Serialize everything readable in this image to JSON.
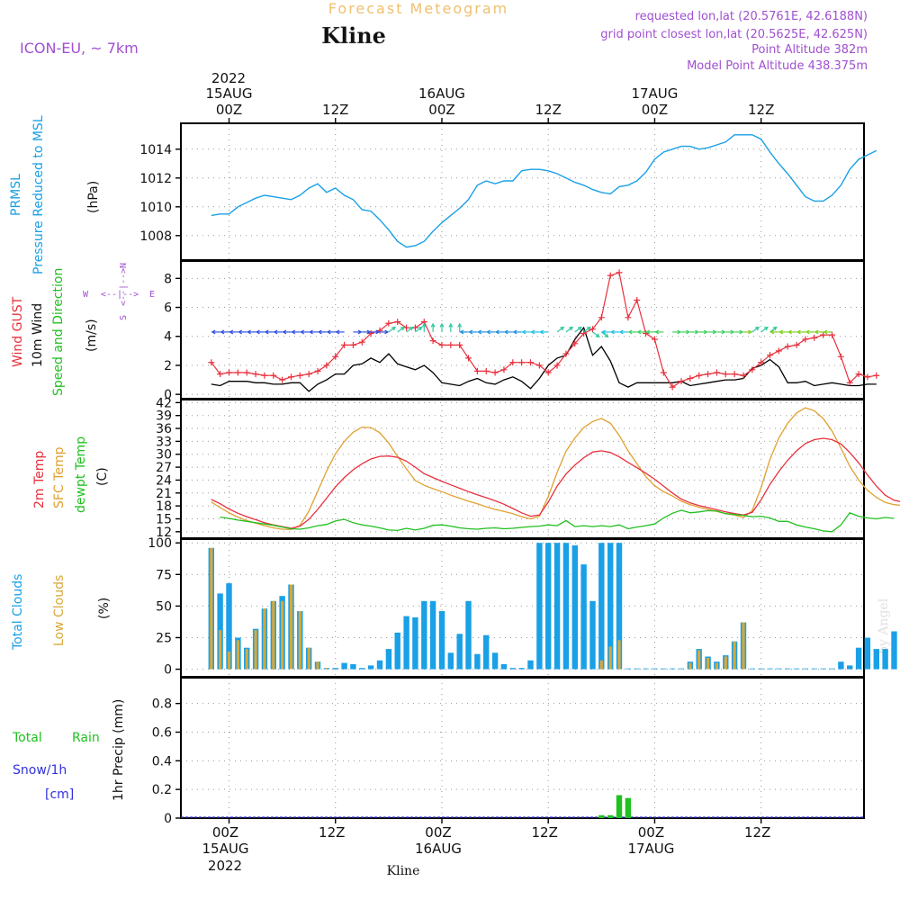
{
  "header": {
    "title": "Forecast Meteogram",
    "station": "Kline",
    "model": "ICON-EU, ~ 7km",
    "requested": "requested lon,lat (20.5761E, 42.6188N)",
    "gridpoint": "grid point closest lon,lat (20.5625E, 42.625N)",
    "point_alt": "Point Altitude 382m",
    "model_alt": "Model Point Altitude 438.375m",
    "watermark": "by Angel",
    "footer_station": "Kline"
  },
  "time_axis": {
    "year": "2022",
    "top_ticks": [
      "00Z",
      "12Z",
      "00Z",
      "12Z",
      "00Z",
      "12Z"
    ],
    "top_dates": [
      "15AUG",
      "16AUG",
      "17AUG"
    ],
    "bottom_ticks": [
      "00Z",
      "12Z",
      "00Z",
      "12Z",
      "00Z",
      "12Z"
    ],
    "bottom_dates": [
      "15AUG",
      "16AUG",
      "17AUG"
    ]
  },
  "colors": {
    "pressure": "#1aa0e6",
    "gust": "#e8303c",
    "wind": "#000000",
    "temp2m": "#e8303c",
    "sfctemp": "#e0a030",
    "dewpt": "#20c020",
    "totalcloud": "#1aa0e6",
    "lowcloud": "#d8a838",
    "rain": "#20c020",
    "snow": "#3030e0",
    "header_purple": "#a050d0",
    "title_orange": "#f0c070"
  },
  "chart_data": [
    {
      "type": "line",
      "name": "pressure",
      "ylabel_lines": [
        "PRMSL",
        "Pressure Reduced to MSL"
      ],
      "unit": "(hPa)",
      "ylim": [
        1006.3,
        1015.8
      ],
      "yticks": [
        1008,
        1010,
        1012,
        1014
      ],
      "x_start": -2,
      "x_step": 1,
      "values": [
        1009.4,
        1009.5,
        1009.5,
        1010.0,
        1010.3,
        1010.6,
        1010.8,
        1010.7,
        1010.6,
        1010.5,
        1010.8,
        1011.3,
        1011.6,
        1011.0,
        1011.3,
        1010.8,
        1010.5,
        1009.8,
        1009.7,
        1009.1,
        1008.4,
        1007.6,
        1007.2,
        1007.3,
        1007.6,
        1008.3,
        1008.9,
        1009.4,
        1009.9,
        1010.5,
        1011.5,
        1011.8,
        1011.6,
        1011.8,
        1011.8,
        1012.5,
        1012.6,
        1012.6,
        1012.5,
        1012.3,
        1012.0,
        1011.7,
        1011.5,
        1011.2,
        1011.0,
        1010.9,
        1011.4,
        1011.5,
        1011.8,
        1012.4,
        1013.3,
        1013.8,
        1014.0,
        1014.2,
        1014.2,
        1014.0,
        1014.1,
        1014.3,
        1014.5,
        1015.0,
        1015.0,
        1015.0,
        1014.7,
        1013.8,
        1013.0,
        1012.3,
        1011.5,
        1010.7,
        1010.4,
        1010.4,
        1010.8,
        1011.5,
        1012.6,
        1013.3,
        1013.6,
        1013.9
      ]
    },
    {
      "type": "line",
      "name": "wind",
      "ylabel_lines": [
        "Wind GUST",
        "10m Wind",
        "Speed and Direction"
      ],
      "unit": "(m/s)",
      "compass": {
        "n": "N",
        "e": "E",
        "s": "S",
        "w": "W"
      },
      "ylim": [
        -0.3,
        9.2
      ],
      "yticks": [
        0,
        2,
        4,
        6,
        8
      ],
      "x_start": -2,
      "x_step": 1,
      "gust": [
        2.2,
        1.4,
        1.5,
        1.5,
        1.5,
        1.4,
        1.3,
        1.3,
        1.0,
        1.2,
        1.3,
        1.4,
        1.6,
        2.0,
        2.6,
        3.4,
        3.4,
        3.6,
        4.2,
        4.4,
        4.9,
        5.0,
        4.6,
        4.6,
        5.0,
        3.7,
        3.4,
        3.4,
        3.4,
        2.5,
        1.6,
        1.6,
        1.5,
        1.7,
        2.2,
        2.2,
        2.2,
        2.0,
        1.5,
        2.0,
        2.8,
        3.5,
        4.2,
        4.5,
        5.3,
        8.2,
        8.4,
        5.3,
        6.5,
        4.2,
        3.8,
        1.5,
        0.5,
        0.9,
        1.1,
        1.3,
        1.4,
        1.5,
        1.4,
        1.4,
        1.3,
        1.7,
        2.2,
        2.7,
        3.0,
        3.3,
        3.4,
        3.8,
        3.9,
        4.1,
        4.1,
        2.6,
        0.8,
        1.4,
        1.2,
        1.3
      ],
      "speed": [
        0.7,
        0.6,
        0.9,
        0.9,
        0.9,
        0.8,
        0.8,
        0.7,
        0.7,
        0.8,
        0.8,
        0.2,
        0.7,
        1.0,
        1.4,
        1.4,
        2.0,
        2.1,
        2.5,
        2.2,
        2.8,
        2.1,
        1.9,
        1.7,
        2.0,
        1.5,
        0.8,
        0.7,
        0.6,
        0.9,
        1.1,
        0.8,
        0.7,
        1.0,
        1.2,
        0.9,
        0.4,
        1.1,
        2.0,
        2.5,
        2.7,
        3.8,
        4.6,
        2.7,
        3.3,
        2.3,
        0.8,
        0.5,
        0.8,
        0.8,
        0.8,
        0.8,
        0.8,
        0.9,
        0.6,
        0.7,
        0.8,
        0.9,
        1.0,
        1.0,
        1.1,
        1.8,
        2.0,
        2.4,
        1.9,
        0.8,
        0.8,
        0.9,
        0.6,
        0.7,
        0.8,
        0.7,
        0.6,
        0.6,
        0.7,
        0.7
      ],
      "arrows_dir": [
        "w",
        "w",
        "w",
        "w",
        "w",
        "w",
        "w",
        "w",
        "w",
        "w",
        "w",
        "w",
        "w",
        "w",
        "w",
        "e",
        "e",
        "e",
        "e",
        "ne",
        "ne",
        "ne",
        "ne",
        "n",
        "n",
        "n",
        "n",
        "n",
        "w",
        "w",
        "w",
        "w",
        "w",
        "w",
        "w",
        "w",
        "w",
        "w",
        "ne",
        "ne",
        "ne",
        "ne",
        "se",
        "se",
        "w",
        "w",
        "w",
        "w",
        "w",
        "w",
        "w",
        "e",
        "e",
        "e",
        "e",
        "e",
        "e",
        "e",
        "e",
        "e",
        "ne",
        "ne",
        "ne",
        "w",
        "w",
        "w",
        "w",
        "w",
        "w",
        "w"
      ]
    },
    {
      "type": "line",
      "name": "temperature",
      "ylabel_lines": [
        "2m Temp",
        "SFC Temp",
        "dewpt Temp"
      ],
      "unit": "(C)",
      "ylim": [
        10.5,
        42.7
      ],
      "yticks": [
        12,
        15,
        18,
        21,
        24,
        27,
        30,
        33,
        36,
        39,
        42
      ],
      "x_start": -2,
      "x_step": 1,
      "temp2m": [
        19.5,
        18.5,
        17.3,
        16.3,
        15.5,
        14.8,
        14.1,
        13.6,
        13.2,
        12.8,
        13.3,
        14.9,
        17.2,
        19.8,
        22.4,
        24.6,
        26.4,
        27.8,
        28.9,
        29.5,
        29.6,
        29.3,
        28.4,
        27.0,
        25.5,
        24.6,
        23.7,
        22.9,
        22.1,
        21.3,
        20.6,
        19.9,
        19.2,
        18.4,
        17.4,
        16.4,
        15.6,
        15.9,
        18.9,
        22.6,
        25.4,
        27.5,
        29.2,
        30.5,
        30.8,
        30.4,
        29.4,
        28.1,
        26.9,
        25.6,
        24.2,
        22.6,
        21.0,
        19.6,
        18.7,
        18.1,
        17.6,
        17.1,
        16.6,
        16.2,
        15.9,
        16.5,
        19.4,
        23.0,
        26.0,
        28.6,
        30.8,
        32.5,
        33.4,
        33.7,
        33.4,
        32.4,
        30.4,
        28.0,
        25.2,
        22.6,
        20.5,
        19.3,
        18.9
      ],
      "sfctemp": [
        18.9,
        17.6,
        16.4,
        15.4,
        14.6,
        14.0,
        13.4,
        12.9,
        12.6,
        12.5,
        13.5,
        16.8,
        21.4,
        26.1,
        30.1,
        33.0,
        35.1,
        36.3,
        36.2,
        35.0,
        32.6,
        29.5,
        26.6,
        23.9,
        22.8,
        22.0,
        21.3,
        20.5,
        19.8,
        19.1,
        18.5,
        17.8,
        17.2,
        16.7,
        16.2,
        15.5,
        15.0,
        15.6,
        20.2,
        25.8,
        30.7,
        33.8,
        36.2,
        37.6,
        38.3,
        37.2,
        34.4,
        30.8,
        27.8,
        24.8,
        22.7,
        21.3,
        20.3,
        19.1,
        18.3,
        17.7,
        17.2,
        16.7,
        16.2,
        15.9,
        15.3,
        16.9,
        22.3,
        28.8,
        33.8,
        37.2,
        39.6,
        40.8,
        40.1,
        38.3,
        35.4,
        31.4,
        27.2,
        24.0,
        21.6,
        20.0,
        18.8,
        18.3,
        18.1
      ],
      "dewpt": [
        15.4,
        15.1,
        14.7,
        14.4,
        14.1,
        13.8,
        13.5,
        13.1,
        12.7,
        12.6,
        12.9,
        13.4,
        13.7,
        14.5,
        14.9,
        14.1,
        13.6,
        13.3,
        12.9,
        12.4,
        12.3,
        12.8,
        12.4,
        12.8,
        13.5,
        13.6,
        13.3,
        12.9,
        12.7,
        12.6,
        12.8,
        12.9,
        12.7,
        12.8,
        13.0,
        13.2,
        13.3,
        13.6,
        13.4,
        14.6,
        13.2,
        13.4,
        13.2,
        13.4,
        13.2,
        13.6,
        12.7,
        13.1,
        13.4,
        13.8,
        15.2,
        16.3,
        17.0,
        16.4,
        16.6,
        16.9,
        16.8,
        16.2,
        16.0,
        15.8,
        15.5,
        15.6,
        15.2,
        14.4,
        14.4,
        13.6,
        13.1,
        12.7,
        12.2,
        12.0,
        13.6,
        16.4,
        15.6,
        15.2,
        15.0,
        15.3,
        15.1
      ],
      "dewpt_x_start": -1
    },
    {
      "type": "bar",
      "name": "clouds",
      "ylabel_lines": [
        "Total Clouds",
        "Low Clouds"
      ],
      "unit": "(%)",
      "ylim": [
        -6,
        103
      ],
      "yticks": [
        0,
        25,
        50,
        75,
        100
      ],
      "x_start": -2,
      "x_step": 1,
      "total": [
        96,
        60,
        68,
        25,
        17,
        32,
        48,
        54,
        58,
        67,
        46,
        17,
        6,
        1,
        1,
        5,
        4,
        1,
        3,
        7,
        16,
        29,
        42,
        41,
        54,
        54,
        46,
        13,
        28,
        54,
        12,
        27,
        13,
        4,
        1,
        1,
        7,
        100,
        100,
        100,
        100,
        98,
        83,
        54,
        100,
        100,
        100,
        0,
        0,
        0,
        0,
        0,
        0,
        0,
        6,
        16,
        10,
        6,
        11,
        22,
        37,
        0,
        0,
        0,
        0,
        0,
        0,
        0,
        0,
        0,
        0,
        6,
        3,
        17,
        25,
        16,
        16,
        30,
        3,
        0,
        0
      ],
      "low": [
        96,
        31,
        14,
        23,
        16,
        31,
        48,
        54,
        54,
        67,
        46,
        17,
        6,
        1,
        0,
        0,
        0,
        0,
        0,
        0,
        0,
        0,
        0,
        0,
        0,
        0,
        0,
        0,
        0,
        0,
        0,
        0,
        0,
        0,
        0,
        0,
        0,
        0,
        0,
        0,
        0,
        0,
        0,
        0,
        7,
        18,
        23,
        0,
        0,
        0,
        0,
        0,
        0,
        0,
        5,
        15,
        9,
        5,
        10,
        22,
        37,
        0,
        0,
        0,
        0,
        0,
        0,
        0,
        0,
        0,
        0,
        0,
        0,
        0,
        0,
        0,
        0,
        0,
        0,
        0,
        0
      ]
    },
    {
      "type": "bar",
      "name": "precip",
      "ylabel_lines": [
        "Total",
        "Rain",
        "Snow/1h",
        "[cm]"
      ],
      "ylabel": "1hr Precip (mm)",
      "ylim": [
        0,
        0.98
      ],
      "yticks": [
        "0",
        "0.2",
        "0.4",
        "0.6",
        "0.8"
      ],
      "ytick_values": [
        0,
        0.2,
        0.4,
        0.6,
        0.8
      ],
      "bars": [
        {
          "x": 42,
          "value": 0.02
        },
        {
          "x": 43,
          "value": 0.02
        },
        {
          "x": 44,
          "value": 0.16
        },
        {
          "x": 45,
          "value": 0.14
        }
      ]
    }
  ]
}
